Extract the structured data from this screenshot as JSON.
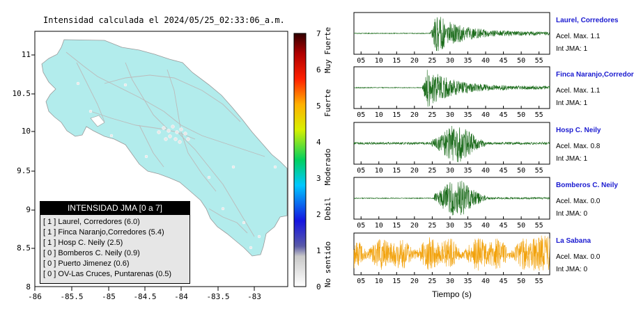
{
  "header": {
    "title": "Intensidad calculada el 2024/05/25_02:33:06_a.m."
  },
  "map": {
    "x_ticks": [
      "-86",
      "-85.5",
      "-85",
      "-84.5",
      "-84",
      "-83.5",
      "-83"
    ],
    "y_ticks": [
      "11",
      "10.5",
      "10",
      "9.5",
      "9",
      "8.5",
      "8"
    ]
  },
  "legend": {
    "title": "INTENSIDAD JMA [0 a 7]",
    "items": [
      "[ 1 ] Laurel, Corredores (6.0)",
      "[ 1 ] Finca Naranjo,Corredores (5.4)",
      "[ 1 ] Hosp C. Neily (2.5)",
      "[ 0 ] Bomberos C. Neily (0.9)",
      "[ 0 ] Puerto Jimenez (0.6)",
      "[ 0 ] OV-Las Cruces, Puntarenas (0.5)"
    ]
  },
  "colorbar": {
    "ticks": [
      "0",
      "1",
      "2",
      "3",
      "4",
      "5",
      "6",
      "7"
    ],
    "categories": [
      "No sentido",
      "Debil",
      "Moderado",
      "Fuerte",
      "Muy Fuerte"
    ]
  },
  "traces": {
    "x_ticks": [
      "05",
      "10",
      "15",
      "20",
      "25",
      "30",
      "35",
      "40",
      "45",
      "50",
      "55"
    ],
    "xlabel": "Tiempo (s)",
    "stations": [
      {
        "name": "Laurel, Corredores",
        "accel": "Acel. Max. 1.1",
        "jma": "Int JMA: 1",
        "color": "#1a6b1a",
        "onset": 24.5,
        "amp": 1.0,
        "noise": 0.02
      },
      {
        "name": "Finca Naranjo,Corredores",
        "accel": "Acel. Max. 1.1",
        "jma": "Int JMA: 1",
        "color": "#1a6b1a",
        "onset": 22.2,
        "amp": 1.0,
        "noise": 0.02
      },
      {
        "name": "Hosp C. Neily",
        "accel": "Acel. Max. 0.8",
        "jma": "Int JMA: 1",
        "color": "#1a6b1a",
        "onset": 24.8,
        "amp": 0.95,
        "noise": 0.06
      },
      {
        "name": "Bomberos C. Neily",
        "accel": "Acel. Max. 0.0",
        "jma": "Int JMA: 0",
        "color": "#1a6b1a",
        "onset": 25.5,
        "amp": 0.95,
        "noise": 0.02
      },
      {
        "name": "La Sabana",
        "accel": "Acel. Max. 0.0",
        "jma": "Int JMA: 0",
        "color": "#f2a20c",
        "onset": 3,
        "amp": 0.0,
        "noise": 0.85
      }
    ]
  },
  "chart_data": [
    {
      "type": "map",
      "title": "Intensidad calculada el 2024/05/25_02:33:06_a.m.",
      "xlim": [
        -86,
        -82.6
      ],
      "ylim": [
        8,
        11.35
      ],
      "legend": [
        "[ 1 ] Laurel, Corredores (6.0)",
        "[ 1 ] Finca Naranjo,Corredores (5.4)",
        "[ 1 ] Hosp C. Neily (2.5)",
        "[ 0 ] Bomberos C. Neily (0.9)",
        "[ 0 ] Puerto Jimenez (0.6)",
        "[ 0 ] OV-Las Cruces, Puntarenas (0.5)"
      ],
      "colorbar_range": [
        0,
        7
      ]
    },
    {
      "type": "line",
      "xlabel": "Tiempo (s)",
      "xlim": [
        3,
        58
      ],
      "series": [
        {
          "name": "Laurel, Corredores",
          "values": []
        },
        {
          "name": "Finca Naranjo,Corredores",
          "values": []
        },
        {
          "name": "Hosp C. Neily",
          "values": []
        },
        {
          "name": "Bomberos C. Neily",
          "values": []
        },
        {
          "name": "La Sabana",
          "values": []
        }
      ]
    }
  ]
}
